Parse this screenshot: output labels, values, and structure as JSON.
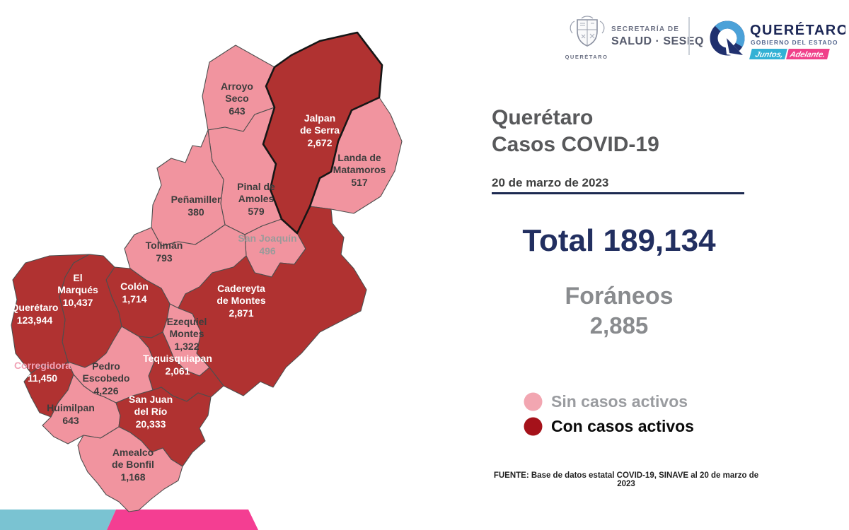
{
  "header": {
    "salud": {
      "line1": "SECRETARÍA DE",
      "line2": "SALUD · SESEQ",
      "sub": "QUERÉTARO"
    },
    "state": {
      "name": "QUERÉTARO",
      "subtitle": "GOBIERNO DEL ESTADO",
      "badge1": "Juntos,",
      "badge2": "Adelante.",
      "badge1_color": "#33B1D5",
      "badge2_color": "#F0418A",
      "ring_navy": "#20306E",
      "ring_blue": "#4BA1D8"
    }
  },
  "panel": {
    "title1": "Querétaro",
    "title2": "Casos COVID-19",
    "date": "20 de marzo de 2023",
    "total_label": "Total",
    "total_value": "189,134",
    "foraneos_label": "Foráneos",
    "foraneos_value": "2,885",
    "legend": {
      "sin": {
        "label": "Sin casos activos",
        "color": "#F2A6B1"
      },
      "con": {
        "label": "Con casos activos",
        "color": "#A5121A"
      }
    },
    "source": "FUENTE: Base de datos estatal COVID-19, SINAVE al 20 de marzo de 2023"
  },
  "map": {
    "colors": {
      "sin": "#F1949F",
      "con": "#B03231"
    },
    "municipalities": [
      {
        "id": "arroyo-seco",
        "name": "Arroyo Seco",
        "lines": [
          "Arroyo",
          "Seco"
        ],
        "value": "643",
        "status": "sin"
      },
      {
        "id": "jalpan-de-serra",
        "name": "Jalpan de Serra",
        "lines": [
          "Jalpan",
          "de Serra"
        ],
        "value": "2,672",
        "status": "con"
      },
      {
        "id": "landa-de-matamoros",
        "name": "Landa de Matamoros",
        "lines": [
          "Landa de",
          "Matamoros"
        ],
        "value": "517",
        "status": "sin"
      },
      {
        "id": "pinal-de-amoles",
        "name": "Pinal de Amoles",
        "lines": [
          "Pinal de",
          "Amoles"
        ],
        "value": "579",
        "status": "sin"
      },
      {
        "id": "penamiller",
        "name": "Peñamiller",
        "lines": [
          "Peñamiller"
        ],
        "value": "380",
        "status": "sin"
      },
      {
        "id": "san-joaquin",
        "name": "San Joaquín",
        "lines": [
          "San Joaquín"
        ],
        "value": "496",
        "status": "sin",
        "label_color": "#9A9A9A"
      },
      {
        "id": "toliman",
        "name": "Tolimán",
        "lines": [
          "Tolimán"
        ],
        "value": "793",
        "status": "sin"
      },
      {
        "id": "cadereyta-de-montes",
        "name": "Cadereyta de Montes",
        "lines": [
          "Cadereyta",
          "de Montes"
        ],
        "value": "2,871",
        "status": "con"
      },
      {
        "id": "colon",
        "name": "Colón",
        "lines": [
          "Colón"
        ],
        "value": "1,714",
        "status": "con"
      },
      {
        "id": "el-marques",
        "name": "El Marqués",
        "lines": [
          "El",
          "Marqués"
        ],
        "value": "10,437",
        "status": "con"
      },
      {
        "id": "queretaro",
        "name": "Querétaro",
        "lines": [
          "Querétaro"
        ],
        "value": "123,944",
        "status": "con"
      },
      {
        "id": "ezequiel-montes",
        "name": "Ezequiel Montes",
        "lines": [
          "Ezequiel",
          "Montes"
        ],
        "value": "1,322",
        "status": "sin"
      },
      {
        "id": "tequisquiapan",
        "name": "Tequisquiapan",
        "lines": [
          "Tequisquiapan"
        ],
        "value": "2,061",
        "status": "con"
      },
      {
        "id": "corregidora",
        "name": "Corregidora",
        "lines": [
          "Corregidora"
        ],
        "value": "11,450",
        "status": "con",
        "name_color": "#F0A3B6",
        "value_color": "#FFFFFF"
      },
      {
        "id": "pedro-escobedo",
        "name": "Pedro Escobedo",
        "lines": [
          "Pedro",
          "Escobedo"
        ],
        "value": "4,226",
        "status": "sin"
      },
      {
        "id": "huimilpan",
        "name": "Huimilpan",
        "lines": [
          "Huimilpan"
        ],
        "value": "643",
        "status": "sin"
      },
      {
        "id": "san-juan-del-rio",
        "name": "San Juan del Río",
        "lines": [
          "San Juan",
          "del Río"
        ],
        "value": "20,333",
        "status": "con"
      },
      {
        "id": "amealco-de-bonfil",
        "name": "Amealco de Bonfil",
        "lines": [
          "Amealco",
          "de Bonfil"
        ],
        "value": "1,168",
        "status": "sin"
      }
    ]
  },
  "footer": {
    "cyan": "#7AC3D2",
    "magenta": "#F43E92"
  }
}
